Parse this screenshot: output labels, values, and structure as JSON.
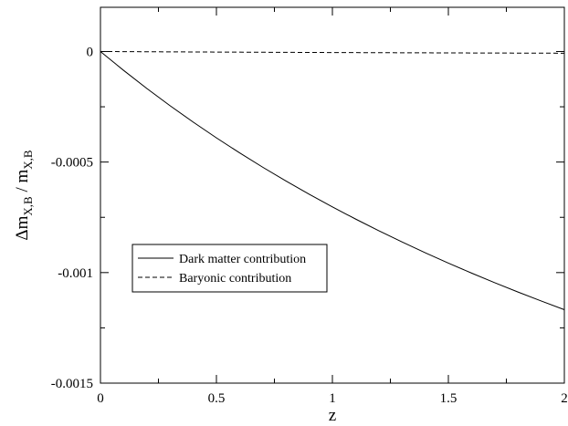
{
  "chart_data": {
    "type": "line",
    "title": "",
    "xlabel": "z",
    "ylabel": {
      "main": "Δm",
      "sub1": "X,B",
      "sep": " / m",
      "sub2": "X,B"
    },
    "xlim": [
      0,
      2
    ],
    "ylim": [
      -0.0015,
      0.0002
    ],
    "x_ticks": [
      {
        "value": 0,
        "label": "0"
      },
      {
        "value": 0.5,
        "label": "0.5"
      },
      {
        "value": 1,
        "label": "1"
      },
      {
        "value": 1.5,
        "label": "1.5"
      },
      {
        "value": 2,
        "label": "2"
      }
    ],
    "y_ticks": [
      {
        "value": 0,
        "label": "0"
      },
      {
        "value": -0.0005,
        "label": "-0.0005"
      },
      {
        "value": -0.001,
        "label": "-0.001"
      },
      {
        "value": -0.0015,
        "label": "-0.0015"
      }
    ],
    "legend_position": "middle-left",
    "series": [
      {
        "name": "Dark matter contribution",
        "dash": "solid",
        "color": "#000000",
        "x": [
          0,
          0.1,
          0.2,
          0.3,
          0.4,
          0.5,
          0.6,
          0.7,
          0.8,
          0.9,
          1.0,
          1.1,
          1.2,
          1.3,
          1.4,
          1.5,
          1.6,
          1.7,
          1.8,
          1.9,
          2.0
        ],
        "y": [
          0,
          -8.55e-05,
          -0.0001671,
          -0.000245,
          -0.0003194,
          -0.0003905,
          -0.0004585,
          -0.0005236,
          -0.0005859,
          -0.0006456,
          -0.0007029,
          -0.0007578,
          -0.0008106,
          -0.0008613,
          -0.0009101,
          -0.000957,
          -0.0010022,
          -0.0010458,
          -0.0010879,
          -0.0011285,
          -0.0011677
        ]
      },
      {
        "name": "Baryonic contribution",
        "dash": "dashed",
        "color": "#000000",
        "x": [
          0,
          0.25,
          0.5,
          0.75,
          1.0,
          1.25,
          1.5,
          1.75,
          2.0
        ],
        "y": [
          0,
          -1.3e-06,
          -2.5e-06,
          -3.6e-06,
          -4.6e-06,
          -5.5e-06,
          -6.3e-06,
          -7e-06,
          -7.7e-06
        ]
      }
    ]
  }
}
